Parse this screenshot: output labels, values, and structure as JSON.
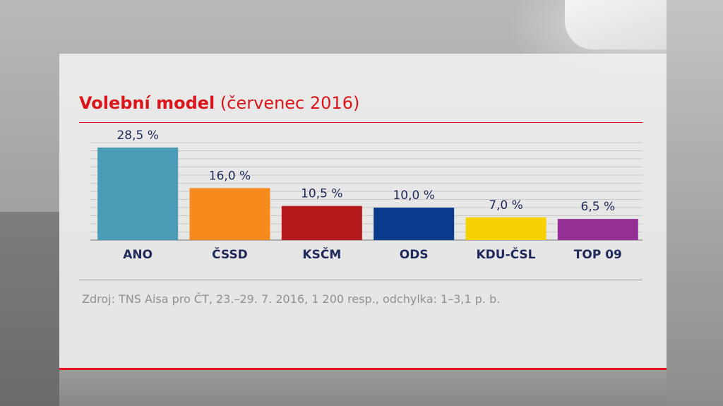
{
  "title": {
    "bold": "Volební model",
    "regular": "(červenec 2016)"
  },
  "source": "Zdroj: TNS Aisa pro ČT, 23.–29. 7. 2016, 1 200 resp., odchylka: 1–3,1 p. b.",
  "chart_data": {
    "type": "bar",
    "categories": [
      "ANO",
      "ČSSD",
      "KSČM",
      "ODS",
      "KDU-ČSL",
      "TOP 09"
    ],
    "values": [
      28.5,
      16.0,
      10.5,
      10.0,
      7.0,
      6.5
    ],
    "value_labels": [
      "28,5 %",
      "16,0 %",
      "10,5 %",
      "10,0 %",
      "7,0 %",
      "6,5 %"
    ],
    "colors": [
      "#4a9bb5",
      "#f78a1d",
      "#b5191c",
      "#0a3a8c",
      "#f7d000",
      "#942f96"
    ],
    "grid": true,
    "ylim": [
      0,
      30
    ],
    "title": "",
    "xlabel": "",
    "ylabel": ""
  }
}
